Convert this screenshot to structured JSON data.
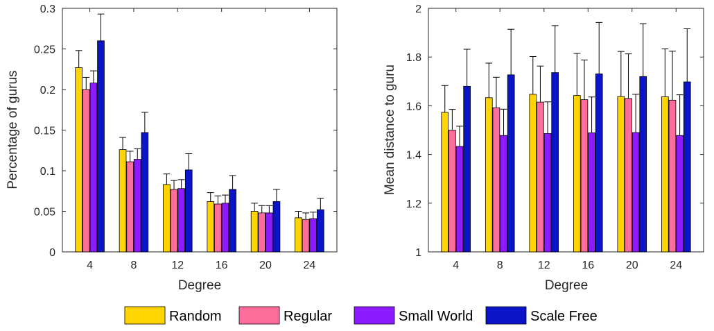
{
  "chart_data": [
    {
      "type": "bar",
      "xlabel": "Degree",
      "ylabel": "Percentage of gurus",
      "categories": [
        "4",
        "8",
        "12",
        "16",
        "20",
        "24"
      ],
      "ylim": [
        0,
        0.3
      ],
      "yticks": [
        0,
        0.05,
        0.1,
        0.15,
        0.2,
        0.25,
        0.3
      ],
      "ytick_labels": [
        "0",
        "0.05",
        "0.1",
        "0.15",
        "0.2",
        "0.25",
        "0.3"
      ],
      "error_bars": "upper",
      "series": [
        {
          "name": "Random",
          "values": [
            0.227,
            0.126,
            0.083,
            0.062,
            0.05,
            0.042
          ],
          "errors": [
            0.021,
            0.015,
            0.013,
            0.011,
            0.01,
            0.008
          ]
        },
        {
          "name": "Regular",
          "values": [
            0.2,
            0.111,
            0.077,
            0.059,
            0.048,
            0.04
          ],
          "errors": [
            0.015,
            0.013,
            0.011,
            0.01,
            0.009,
            0.008
          ]
        },
        {
          "name": "Small World",
          "values": [
            0.208,
            0.114,
            0.078,
            0.06,
            0.048,
            0.041
          ],
          "errors": [
            0.015,
            0.013,
            0.011,
            0.01,
            0.009,
            0.008
          ]
        },
        {
          "name": "Scale Free",
          "values": [
            0.26,
            0.147,
            0.101,
            0.077,
            0.062,
            0.052
          ],
          "errors": [
            0.033,
            0.025,
            0.02,
            0.017,
            0.015,
            0.014
          ]
        }
      ]
    },
    {
      "type": "bar",
      "xlabel": "Degree",
      "ylabel": "Mean distance to guru",
      "categories": [
        "4",
        "8",
        "12",
        "16",
        "20",
        "24"
      ],
      "ylim": [
        1,
        2
      ],
      "yticks": [
        1,
        1.2,
        1.4,
        1.6,
        1.8,
        2
      ],
      "ytick_labels": [
        "1",
        "1.2",
        "1.4",
        "1.6",
        "1.8",
        "2"
      ],
      "error_bars": "upper",
      "series": [
        {
          "name": "Random",
          "values": [
            1.573,
            1.633,
            1.647,
            1.642,
            1.638,
            1.637
          ],
          "errors": [
            0.11,
            0.142,
            0.155,
            0.173,
            0.185,
            0.197
          ]
        },
        {
          "name": "Regular",
          "values": [
            1.5,
            1.592,
            1.615,
            1.625,
            1.63,
            1.623
          ],
          "errors": [
            0.085,
            0.125,
            0.148,
            0.163,
            0.183,
            0.201
          ]
        },
        {
          "name": "Small World",
          "values": [
            1.433,
            1.478,
            1.486,
            1.489,
            1.49,
            1.478
          ],
          "errors": [
            0.083,
            0.108,
            0.13,
            0.147,
            0.157,
            0.167
          ]
        },
        {
          "name": "Scale Free",
          "values": [
            1.68,
            1.727,
            1.736,
            1.731,
            1.72,
            1.698
          ],
          "errors": [
            0.152,
            0.187,
            0.193,
            0.211,
            0.217,
            0.218
          ]
        }
      ]
    }
  ],
  "legend": {
    "placement": "bottom",
    "items": [
      {
        "label": "Random",
        "color": "#FFD400"
      },
      {
        "label": "Regular",
        "color": "#FF6E9A"
      },
      {
        "label": "Small World",
        "color": "#8C1BFF"
      },
      {
        "label": "Scale Free",
        "color": "#0A14C8"
      }
    ]
  }
}
